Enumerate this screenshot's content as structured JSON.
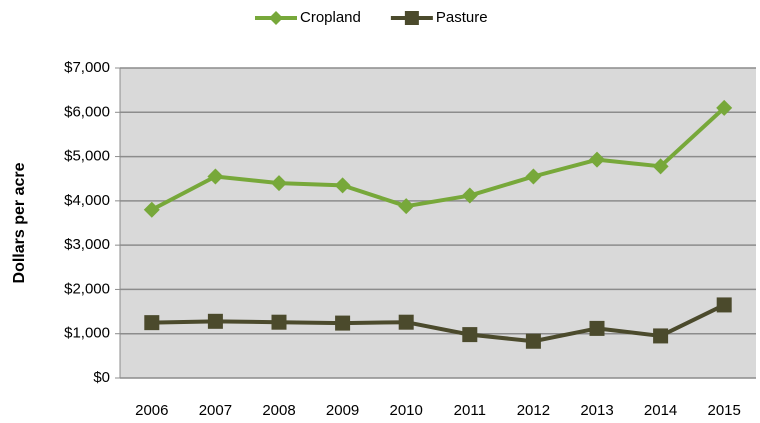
{
  "chart_data": {
    "type": "line",
    "y_label": "Dollars per acre",
    "categories": [
      "2006",
      "2007",
      "2008",
      "2009",
      "2010",
      "2011",
      "2012",
      "2013",
      "2014",
      "2015"
    ],
    "series": [
      {
        "name": "Cropland",
        "color": "#77a83a",
        "marker": "diamond",
        "values": [
          3800,
          4550,
          4400,
          4350,
          3880,
          4120,
          4550,
          4930,
          4780,
          6100
        ]
      },
      {
        "name": "Pasture",
        "color": "#4b4a2c",
        "marker": "square",
        "values": [
          1250,
          1280,
          1260,
          1240,
          1260,
          980,
          830,
          1120,
          950,
          1650
        ]
      }
    ],
    "ylim": [
      0,
      7000
    ],
    "yticks": [
      {
        "value": 0,
        "label": "$0"
      },
      {
        "value": 1000,
        "label": "$1,000"
      },
      {
        "value": 2000,
        "label": "$2,000"
      },
      {
        "value": 3000,
        "label": "$3,000"
      },
      {
        "value": 4000,
        "label": "$4,000"
      },
      {
        "value": 5000,
        "label": "$5,000"
      },
      {
        "value": 6000,
        "label": "$6,000"
      },
      {
        "value": 7000,
        "label": "$7,000"
      }
    ],
    "grid": true,
    "legend": "top"
  }
}
